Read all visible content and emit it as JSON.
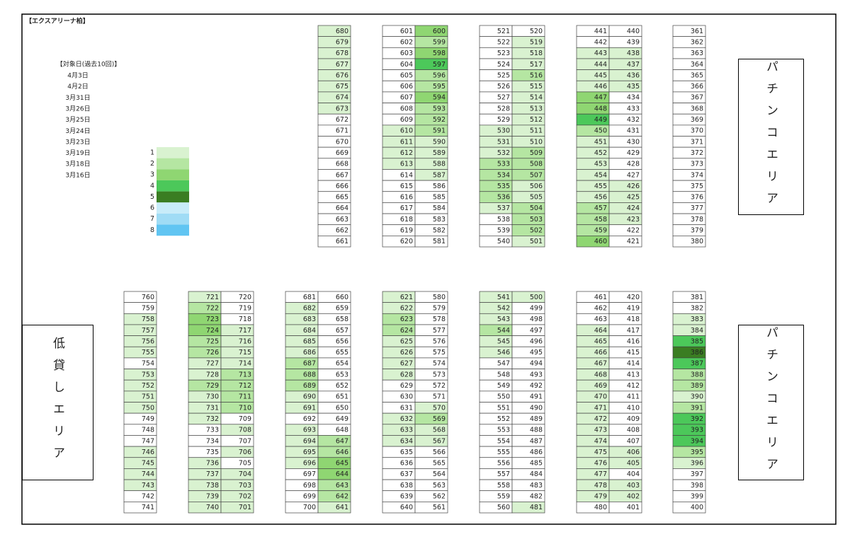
{
  "title": "【エクスアリーナ柏】",
  "dates_title": "【対象日(過去10回)】",
  "dates": [
    "4月3日",
    "4月2日",
    "3月31日",
    "3月26日",
    "3月25日",
    "3月24日",
    "3月23日",
    "3月19日",
    "3月18日",
    "3月16日"
  ],
  "legend": [
    {
      "label": "1",
      "color": "#d9f2d0"
    },
    {
      "label": "2",
      "color": "#b5e6a2"
    },
    {
      "label": "3",
      "color": "#8fd672"
    },
    {
      "label": "4",
      "color": "#4cc85a"
    },
    {
      "label": "5",
      "color": "#3a7d22"
    },
    {
      "label": "6",
      "color": "#c8ecf9"
    },
    {
      "label": "7",
      "color": "#a0dcf5"
    },
    {
      "label": "8",
      "color": "#61c5f2"
    }
  ],
  "side_labels": [
    "パチンコエリア",
    "パチンコエリア",
    "低貸しエリア"
  ],
  "top_columns": [
    {
      "numbers": [
        680,
        679,
        678,
        677,
        676,
        675,
        674,
        673,
        672,
        671,
        670,
        669,
        668,
        667,
        666,
        665,
        664,
        663,
        662,
        661
      ],
      "levels": [
        1,
        1,
        1,
        1,
        1,
        1,
        1,
        1,
        0,
        0,
        0,
        0,
        0,
        0,
        0,
        0,
        0,
        0,
        0,
        0
      ]
    },
    {
      "numbers": [
        601,
        602,
        603,
        604,
        605,
        606,
        607,
        608,
        609,
        610,
        611,
        612,
        613,
        614,
        615,
        616,
        617,
        618,
        619,
        620
      ],
      "levels": [
        0,
        0,
        0,
        0,
        0,
        0,
        0,
        0,
        0,
        1,
        1,
        1,
        1,
        0,
        0,
        0,
        0,
        0,
        0,
        0
      ]
    },
    {
      "numbers": [
        600,
        599,
        598,
        597,
        596,
        595,
        594,
        593,
        592,
        591,
        590,
        589,
        588,
        587,
        586,
        585,
        584,
        583,
        582,
        581
      ],
      "levels": [
        3,
        2,
        3,
        4,
        2,
        2,
        3,
        2,
        2,
        2,
        1,
        1,
        1,
        1,
        0,
        0,
        0,
        0,
        0,
        0
      ]
    },
    {
      "numbers": [
        521,
        522,
        523,
        524,
        525,
        526,
        527,
        528,
        529,
        530,
        531,
        532,
        533,
        534,
        535,
        536,
        537,
        538,
        539,
        540
      ],
      "levels": [
        0,
        0,
        0,
        0,
        0,
        0,
        0,
        0,
        0,
        1,
        1,
        1,
        2,
        2,
        2,
        2,
        1,
        0,
        0,
        0
      ]
    },
    {
      "numbers": [
        520,
        519,
        518,
        517,
        516,
        515,
        514,
        513,
        512,
        511,
        510,
        509,
        508,
        507,
        506,
        505,
        504,
        503,
        502,
        501
      ],
      "levels": [
        0,
        1,
        1,
        1,
        2,
        1,
        1,
        1,
        1,
        1,
        1,
        2,
        2,
        2,
        1,
        1,
        2,
        2,
        2,
        1
      ]
    },
    {
      "numbers": [
        441,
        442,
        443,
        444,
        445,
        446,
        447,
        448,
        449,
        450,
        451,
        452,
        453,
        454,
        455,
        456,
        457,
        458,
        459,
        460
      ],
      "levels": [
        0,
        0,
        1,
        1,
        1,
        1,
        3,
        3,
        4,
        2,
        1,
        1,
        1,
        1,
        1,
        1,
        2,
        2,
        2,
        3
      ]
    },
    {
      "numbers": [
        440,
        439,
        438,
        437,
        436,
        435,
        434,
        433,
        432,
        431,
        430,
        429,
        428,
        427,
        426,
        425,
        424,
        423,
        422,
        421
      ],
      "levels": [
        0,
        0,
        1,
        1,
        1,
        1,
        0,
        0,
        0,
        0,
        0,
        0,
        0,
        0,
        1,
        1,
        1,
        1,
        0,
        0
      ]
    },
    {
      "numbers": [
        361,
        362,
        363,
        364,
        365,
        366,
        367,
        368,
        369,
        370,
        371,
        372,
        373,
        374,
        375,
        376,
        377,
        378,
        379,
        380
      ],
      "levels": [
        0,
        0,
        0,
        0,
        0,
        0,
        0,
        0,
        0,
        0,
        0,
        0,
        0,
        0,
        0,
        0,
        0,
        0,
        0,
        0
      ]
    }
  ],
  "bottom_columns": [
    {
      "numbers": [
        760,
        759,
        758,
        757,
        756,
        755,
        754,
        753,
        752,
        751,
        750,
        749,
        748,
        747,
        746,
        745,
        744,
        743,
        742,
        741
      ],
      "levels": [
        0,
        0,
        1,
        1,
        1,
        1,
        0,
        1,
        1,
        1,
        1,
        0,
        0,
        0,
        1,
        1,
        1,
        1,
        0,
        0
      ]
    },
    {
      "numbers": [
        721,
        722,
        723,
        724,
        725,
        726,
        727,
        728,
        729,
        730,
        731,
        732,
        733,
        734,
        735,
        736,
        737,
        738,
        739,
        740
      ],
      "levels": [
        1,
        2,
        3,
        3,
        2,
        2,
        1,
        1,
        2,
        1,
        1,
        1,
        0,
        0,
        0,
        1,
        1,
        1,
        1,
        1
      ]
    },
    {
      "numbers": [
        720,
        719,
        718,
        717,
        716,
        715,
        714,
        713,
        712,
        711,
        710,
        709,
        708,
        707,
        706,
        705,
        704,
        703,
        702,
        701
      ],
      "levels": [
        0,
        0,
        0,
        1,
        1,
        1,
        1,
        2,
        2,
        2,
        2,
        0,
        1,
        0,
        1,
        0,
        1,
        1,
        1,
        1
      ]
    },
    {
      "numbers": [
        681,
        682,
        683,
        684,
        685,
        686,
        687,
        688,
        689,
        690,
        691,
        692,
        693,
        694,
        695,
        696,
        697,
        698,
        699,
        700
      ],
      "levels": [
        0,
        1,
        1,
        1,
        1,
        1,
        2,
        2,
        2,
        1,
        1,
        0,
        1,
        1,
        1,
        1,
        0,
        0,
        0,
        0
      ]
    },
    {
      "numbers": [
        660,
        659,
        658,
        657,
        656,
        655,
        654,
        653,
        652,
        651,
        650,
        649,
        648,
        647,
        646,
        645,
        644,
        643,
        642,
        641
      ],
      "levels": [
        0,
        0,
        0,
        0,
        0,
        0,
        0,
        0,
        0,
        0,
        0,
        0,
        0,
        2,
        2,
        3,
        3,
        2,
        2,
        1
      ]
    },
    {
      "numbers": [
        621,
        622,
        623,
        624,
        625,
        626,
        627,
        628,
        629,
        630,
        631,
        632,
        633,
        634,
        635,
        636,
        637,
        638,
        639,
        640
      ],
      "levels": [
        1,
        1,
        2,
        2,
        1,
        1,
        1,
        1,
        0,
        0,
        0,
        1,
        1,
        1,
        0,
        0,
        0,
        0,
        0,
        0
      ]
    },
    {
      "numbers": [
        580,
        579,
        578,
        577,
        576,
        575,
        574,
        573,
        572,
        571,
        570,
        569,
        568,
        567,
        566,
        565,
        564,
        563,
        562,
        561
      ],
      "levels": [
        0,
        0,
        0,
        0,
        0,
        0,
        0,
        0,
        0,
        0,
        1,
        2,
        1,
        1,
        0,
        0,
        0,
        0,
        0,
        0
      ]
    },
    {
      "numbers": [
        541,
        542,
        543,
        544,
        545,
        546,
        547,
        548,
        549,
        550,
        551,
        552,
        553,
        554,
        555,
        556,
        557,
        558,
        559,
        560
      ],
      "levels": [
        1,
        1,
        1,
        2,
        1,
        1,
        0,
        0,
        0,
        0,
        0,
        0,
        0,
        0,
        0,
        0,
        0,
        0,
        0,
        0
      ]
    },
    {
      "numbers": [
        500,
        499,
        498,
        497,
        496,
        495,
        494,
        493,
        492,
        491,
        490,
        489,
        488,
        487,
        486,
        485,
        484,
        483,
        482,
        481
      ],
      "levels": [
        1,
        0,
        0,
        0,
        0,
        0,
        0,
        0,
        0,
        0,
        0,
        0,
        0,
        0,
        0,
        0,
        0,
        0,
        0,
        1
      ]
    },
    {
      "numbers": [
        461,
        462,
        463,
        464,
        465,
        466,
        467,
        468,
        469,
        470,
        471,
        472,
        473,
        474,
        475,
        476,
        477,
        478,
        479,
        480
      ],
      "levels": [
        0,
        0,
        0,
        1,
        1,
        1,
        1,
        1,
        1,
        1,
        1,
        1,
        1,
        1,
        1,
        1,
        1,
        1,
        1,
        0
      ]
    },
    {
      "numbers": [
        420,
        419,
        418,
        417,
        416,
        415,
        414,
        413,
        412,
        411,
        410,
        409,
        408,
        407,
        406,
        405,
        404,
        403,
        402,
        401
      ],
      "levels": [
        0,
        0,
        0,
        0,
        0,
        0,
        0,
        0,
        0,
        0,
        0,
        0,
        0,
        0,
        1,
        1,
        0,
        1,
        1,
        0
      ]
    },
    {
      "numbers": [
        381,
        382,
        383,
        384,
        385,
        386,
        387,
        388,
        389,
        390,
        391,
        392,
        393,
        394,
        395,
        396,
        397,
        398,
        399,
        400
      ],
      "levels": [
        0,
        0,
        1,
        1,
        4,
        5,
        4,
        2,
        2,
        1,
        2,
        4,
        4,
        4,
        2,
        1,
        0,
        0,
        0,
        0
      ]
    }
  ]
}
